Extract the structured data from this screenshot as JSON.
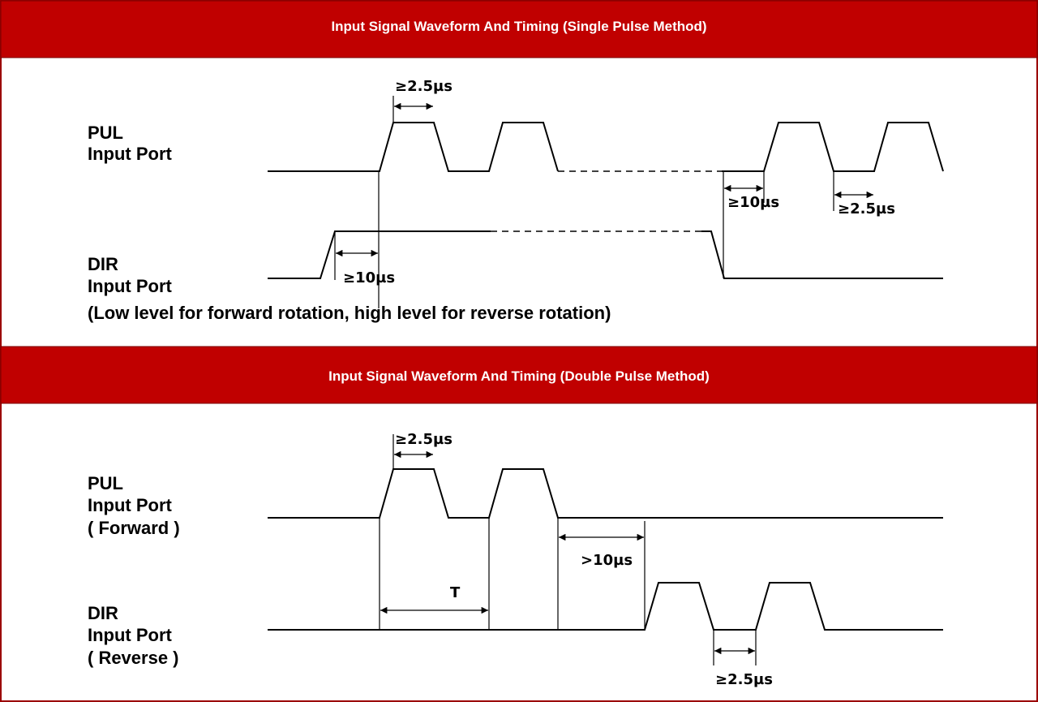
{
  "single": {
    "title": "Input Signal Waveform And Timing (Single Pulse Method)",
    "pul_label": [
      "PUL",
      "Input Port"
    ],
    "dir_label": [
      "DIR",
      "Input Port"
    ],
    "note": "(Low level for forward rotation, high level for reverse rotation)",
    "annotations": [
      "≥2.5µs",
      "≥10µs",
      "≥10µs",
      "≥2.5µs"
    ]
  },
  "double": {
    "title": "Input Signal Waveform And Timing (Double Pulse Method)",
    "pul_label": [
      "PUL",
      "Input Port",
      "( Forward )"
    ],
    "dir_label": [
      "DIR",
      "Input Port",
      "( Reverse )"
    ],
    "annotations": [
      "≥2.5µs",
      "T",
      ">10µs",
      "≥2.5µs"
    ]
  }
}
